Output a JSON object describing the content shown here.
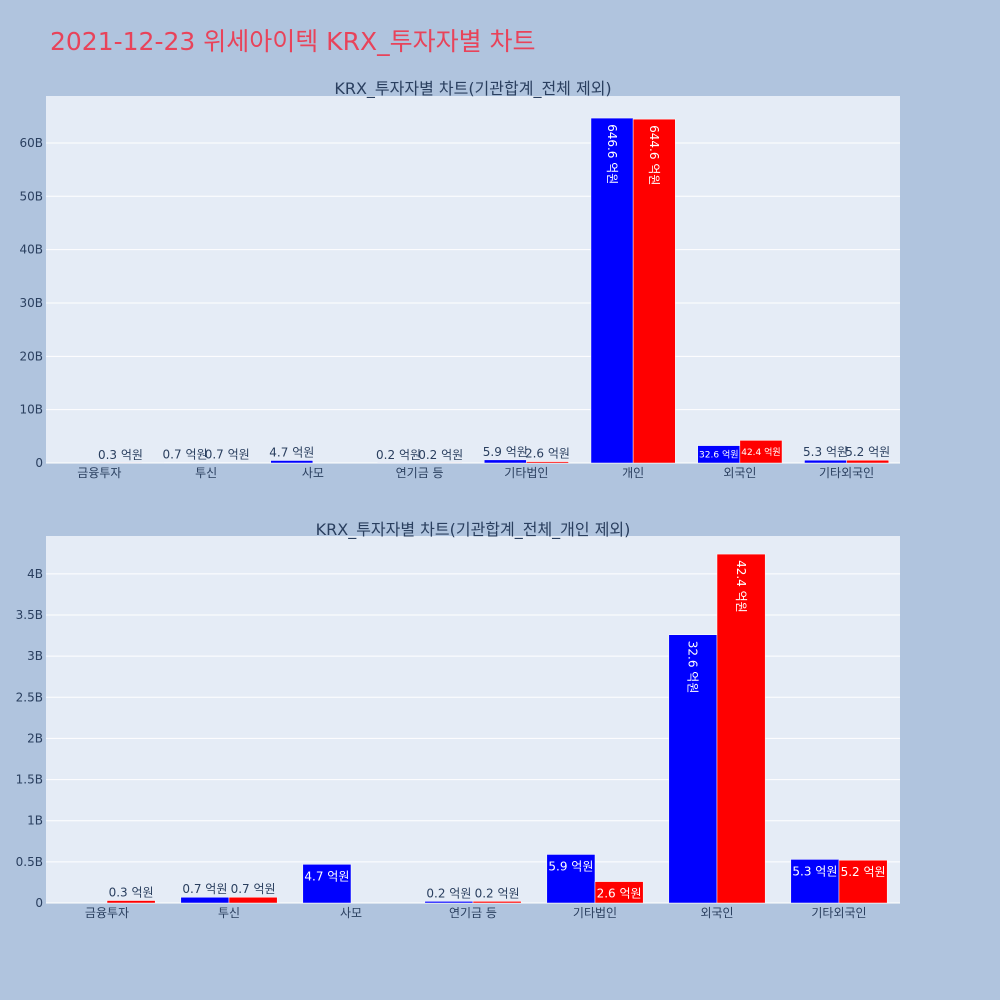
{
  "page_title": "2021-12-23 위세아이텍 KRX_투자자별 차트",
  "colors": {
    "series_a": "#0000ff",
    "series_b": "#ff0000"
  },
  "chart_data": [
    {
      "type": "bar",
      "title": "KRX_투자자별 차트(기관합계_전체 제외)",
      "categories": [
        "금융투자",
        "투신",
        "사모",
        "연기금 등",
        "기타법인",
        "개인",
        "외국인",
        "기타외국인"
      ],
      "series": [
        {
          "color": "#0000ff",
          "values": [
            0,
            0.07,
            0.47,
            0.02,
            0.59,
            64.66,
            3.26,
            0.53
          ],
          "labels": [
            "",
            "0.7 억원",
            "4.7 억원",
            "0.2 억원",
            "5.9 억원",
            "646.6 억원",
            "32.6 억원",
            "5.3 억원"
          ]
        },
        {
          "color": "#ff0000",
          "values": [
            0.03,
            0.07,
            0,
            0.02,
            0.26,
            64.46,
            4.24,
            0.52
          ],
          "labels": [
            "0.3 억원",
            "0.7 억원",
            "",
            "0.2 억원",
            "2.6 억원",
            "644.6 억원",
            "42.4 억원",
            "5.2 억원"
          ]
        }
      ],
      "ylim": [
        0,
        68.8
      ],
      "yticks": [
        0,
        10,
        20,
        30,
        40,
        50,
        60
      ],
      "ytick_labels": [
        "0",
        "10B",
        "20B",
        "30B",
        "40B",
        "50B",
        "60B"
      ],
      "grid": true
    },
    {
      "type": "bar",
      "title": "KRX_투자자별 차트(기관합계_전체_개인 제외)",
      "categories": [
        "금융투자",
        "투신",
        "사모",
        "연기금 등",
        "기타법인",
        "외국인",
        "기타외국인"
      ],
      "series": [
        {
          "color": "#0000ff",
          "values": [
            0,
            0.07,
            0.47,
            0.02,
            0.59,
            3.26,
            0.53
          ],
          "labels": [
            "",
            "0.7 억원",
            "4.7 억원",
            "0.2 억원",
            "5.9 억원",
            "32.6 억원",
            "5.3 억원"
          ]
        },
        {
          "color": "#ff0000",
          "values": [
            0.03,
            0.07,
            0,
            0.02,
            0.26,
            4.24,
            0.52
          ],
          "labels": [
            "0.3 억원",
            "0.7 억원",
            "",
            "0.2 억원",
            "2.6 억원",
            "42.4 억원",
            "5.2 억원"
          ]
        }
      ],
      "ylim": [
        0,
        4.46
      ],
      "yticks": [
        0,
        0.5,
        1,
        1.5,
        2,
        2.5,
        3,
        3.5,
        4
      ],
      "ytick_labels": [
        "0",
        "0.5B",
        "1B",
        "1.5B",
        "2B",
        "2.5B",
        "3B",
        "3.5B",
        "4B"
      ],
      "grid": true
    }
  ]
}
